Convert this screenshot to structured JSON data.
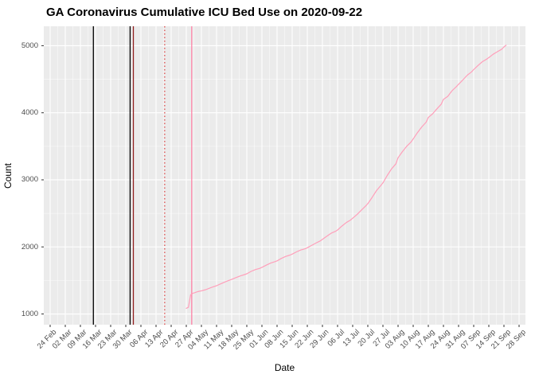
{
  "chart_data": {
    "type": "line",
    "title": "GA Coronavirus Cumulative ICU Bed Use on 2020-09-22",
    "xlabel": "Date",
    "ylabel": "Count",
    "x_tick_labels": [
      "24 Feb",
      "02 Mar",
      "09 Mar",
      "16 Mar",
      "23 Mar",
      "30 Mar",
      "06 Apr",
      "13 Apr",
      "20 Apr",
      "27 Apr",
      "04 May",
      "11 May",
      "18 May",
      "25 May",
      "01 Jun",
      "08 Jun",
      "15 Jun",
      "22 Jun",
      "29 Jun",
      "06 Jul",
      "13 Jul",
      "20 Jul",
      "27 Jul",
      "03 Aug",
      "10 Aug",
      "17 Aug",
      "24 Aug",
      "31 Aug",
      "07 Sep",
      "14 Sep",
      "21 Sep",
      "28 Sep"
    ],
    "x_tick_interval_days": 7,
    "x_day_span": 217,
    "y_ticks": [
      1000,
      2000,
      3000,
      4000,
      5000
    ],
    "y_minor_ticks": [
      1500,
      2500,
      3500,
      4500
    ],
    "ylim": [
      840,
      5290
    ],
    "grid": "on",
    "legend": "none",
    "panel_bg": "#ebebeb",
    "grid_major_color": "#ffffff",
    "grid_minor_color": "#ffffff",
    "axis_text_color": "#4d4d4d",
    "tick_mark_color": "#333333",
    "vlines": [
      {
        "date_approx": "15 Mar",
        "day": 20,
        "color": "#000000",
        "style": "solid"
      },
      {
        "date_approx": "01 Apr",
        "day": 37,
        "color": "#000000",
        "style": "solid"
      },
      {
        "date_approx": "02 Apr",
        "day": 38.5,
        "color": "#8f1d1d",
        "style": "solid"
      },
      {
        "date_approx": "17 Apr",
        "day": 53,
        "color": "#dd4a4a",
        "style": "dotted"
      },
      {
        "date_approx": "29 Apr",
        "day": 65.5,
        "color": "#ff85a8",
        "style": "solid"
      }
    ],
    "series": [
      {
        "name": "Cumulative ICU Bed Use",
        "color": "#ff9fba",
        "points": [
          [
            63,
            1085
          ],
          [
            64,
            1100
          ],
          [
            65,
            1285
          ],
          [
            66,
            1308
          ],
          [
            67,
            1318
          ],
          [
            68,
            1330
          ],
          [
            69,
            1338
          ],
          [
            70,
            1345
          ],
          [
            72,
            1362
          ],
          [
            74,
            1388
          ],
          [
            75,
            1400
          ],
          [
            77,
            1422
          ],
          [
            79,
            1450
          ],
          [
            81,
            1478
          ],
          [
            82,
            1492
          ],
          [
            84,
            1515
          ],
          [
            86,
            1542
          ],
          [
            88,
            1568
          ],
          [
            90,
            1588
          ],
          [
            91,
            1600
          ],
          [
            93,
            1635
          ],
          [
            95,
            1662
          ],
          [
            97,
            1680
          ],
          [
            98,
            1695
          ],
          [
            100,
            1728
          ],
          [
            102,
            1758
          ],
          [
            104,
            1780
          ],
          [
            105,
            1792
          ],
          [
            107,
            1828
          ],
          [
            109,
            1858
          ],
          [
            111,
            1878
          ],
          [
            112,
            1892
          ],
          [
            114,
            1926
          ],
          [
            116,
            1954
          ],
          [
            118,
            1972
          ],
          [
            119,
            1988
          ],
          [
            121,
            2022
          ],
          [
            123,
            2058
          ],
          [
            125,
            2090
          ],
          [
            126,
            2112
          ],
          [
            128,
            2158
          ],
          [
            130,
            2204
          ],
          [
            132,
            2232
          ],
          [
            133,
            2252
          ],
          [
            135,
            2310
          ],
          [
            137,
            2362
          ],
          [
            139,
            2400
          ],
          [
            140,
            2428
          ],
          [
            142,
            2482
          ],
          [
            144,
            2548
          ],
          [
            146,
            2610
          ],
          [
            147,
            2645
          ],
          [
            149,
            2738
          ],
          [
            151,
            2840
          ],
          [
            153,
            2915
          ],
          [
            154,
            2955
          ],
          [
            156,
            3065
          ],
          [
            158,
            3165
          ],
          [
            160,
            3240
          ],
          [
            161,
            3330
          ],
          [
            163,
            3420
          ],
          [
            165,
            3500
          ],
          [
            167,
            3565
          ],
          [
            168,
            3610
          ],
          [
            170,
            3705
          ],
          [
            172,
            3790
          ],
          [
            174,
            3860
          ],
          [
            175,
            3930
          ],
          [
            177,
            3985
          ],
          [
            179,
            4060
          ],
          [
            181,
            4130
          ],
          [
            182,
            4200
          ],
          [
            184,
            4245
          ],
          [
            186,
            4330
          ],
          [
            188,
            4390
          ],
          [
            189,
            4425
          ],
          [
            191,
            4490
          ],
          [
            193,
            4560
          ],
          [
            195,
            4610
          ],
          [
            196,
            4645
          ],
          [
            198,
            4705
          ],
          [
            200,
            4762
          ],
          [
            202,
            4800
          ],
          [
            203,
            4822
          ],
          [
            205,
            4872
          ],
          [
            207,
            4912
          ],
          [
            209,
            4948
          ],
          [
            210,
            4982
          ],
          [
            211,
            5008
          ]
        ]
      }
    ]
  }
}
